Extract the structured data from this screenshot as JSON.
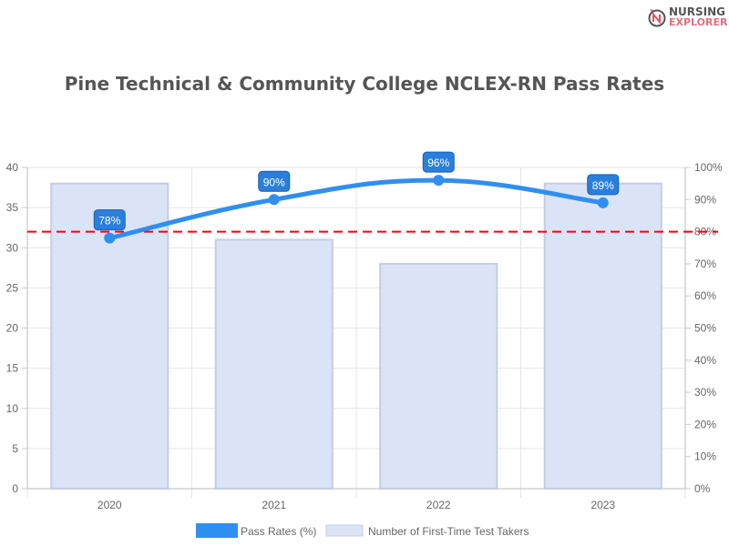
{
  "logo": {
    "line1": "NURSING",
    "line2": "EXPLORER"
  },
  "chart_data": {
    "type": "bar+line",
    "title": "Pine Technical & Community College NCLEX-RN Pass Rates",
    "categories": [
      "2020",
      "2021",
      "2022",
      "2023"
    ],
    "series": [
      {
        "name": "Pass Rates (%)",
        "type": "line",
        "axis": "right",
        "values": [
          78,
          90,
          96,
          89
        ],
        "labels": [
          "78%",
          "90%",
          "96%",
          "89%"
        ],
        "color": "#2f8ff0"
      },
      {
        "name": "Number of First-Time Test Takers",
        "type": "bar",
        "axis": "left",
        "values": [
          38,
          31,
          28,
          38
        ],
        "color": "#dbe3f7"
      }
    ],
    "reference_line": {
      "value": 80,
      "axis": "right",
      "color": "#ff0000",
      "style": "dashed"
    },
    "left_axis": {
      "ylim": [
        0,
        40
      ],
      "ticks": [
        "0",
        "5",
        "10",
        "15",
        "20",
        "25",
        "30",
        "35",
        "40"
      ]
    },
    "right_axis": {
      "ylim": [
        0,
        100
      ],
      "ticks": [
        "0%",
        "10%",
        "20%",
        "30%",
        "40%",
        "50%",
        "60%",
        "70%",
        "80%",
        "90%",
        "100%"
      ]
    },
    "grid": true,
    "legend": "bottom"
  }
}
